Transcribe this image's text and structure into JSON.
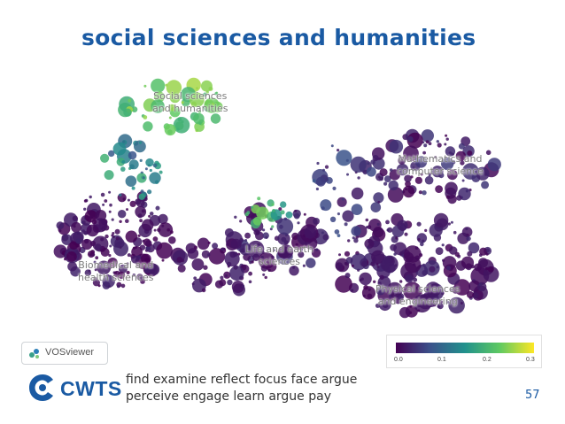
{
  "slide": {
    "title": "social sciences and humanities",
    "caption_lines": [
      "find examine reflect focus face argue",
      "perceive engage learn argue pay"
    ],
    "page_number": "57"
  },
  "map": {
    "region_labels": [
      [
        "Social sciences",
        "and humanities"
      ],
      [
        "Mathematics and",
        "computer science"
      ],
      [
        "Life and earth",
        "sciences"
      ],
      [
        "Biomedical and",
        "health sciences"
      ],
      [
        "Physical sciences",
        "and engineering"
      ]
    ]
  },
  "color_scale": {
    "ticks": [
      "0.0",
      "0.1",
      "0.2",
      "0.3"
    ],
    "colors": [
      "#440154",
      "#3b528b",
      "#21918c",
      "#5ec962",
      "#fde725"
    ]
  },
  "logos": {
    "vosviewer": "VOSviewer",
    "cwts": "CWTS"
  },
  "accent_color": "#1a5aa3"
}
